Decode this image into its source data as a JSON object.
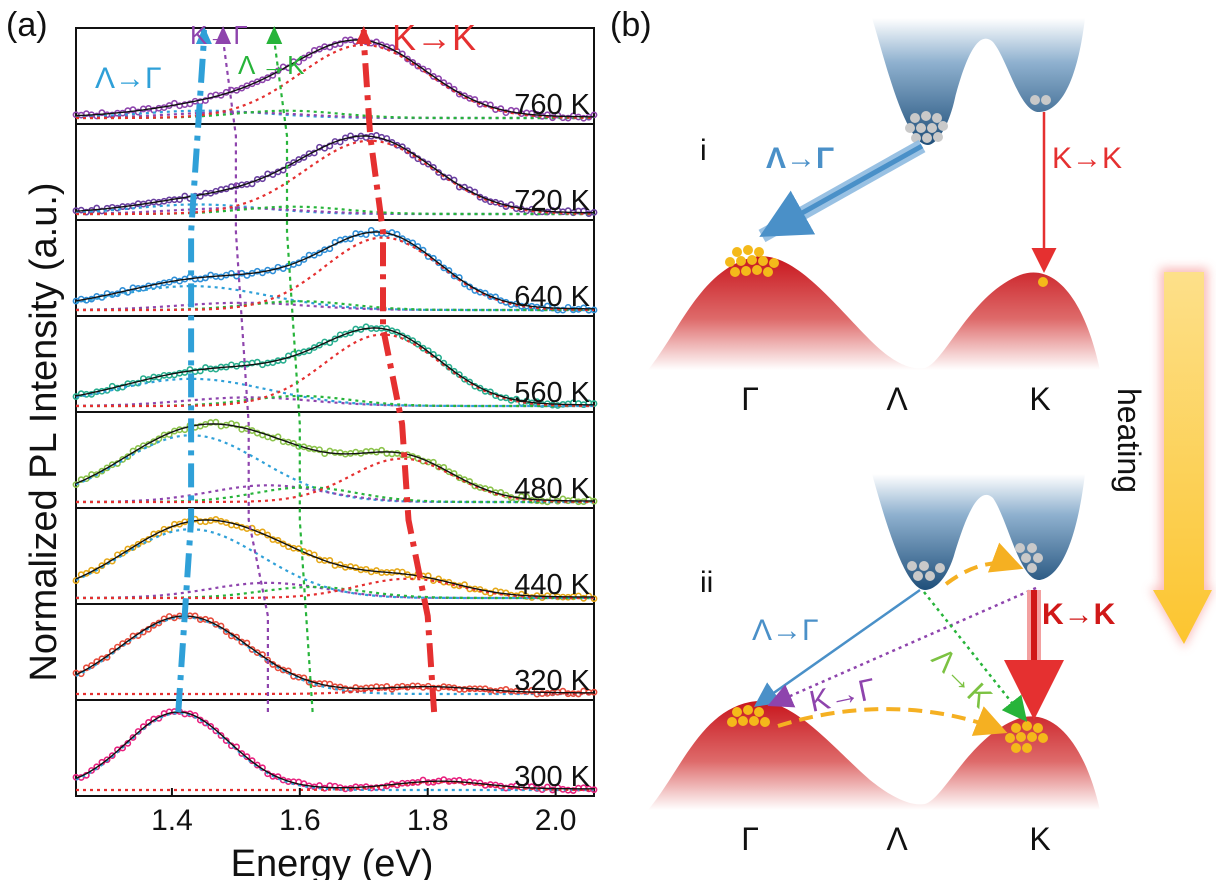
{
  "panel_a_label": "(a)",
  "panel_b_label": "(b)",
  "chart_data": {
    "type": "line",
    "xlabel": "Energy (eV)",
    "ylabel": "Normalized PL Intensity (a.u.)",
    "xlim": [
      1.25,
      2.06
    ],
    "xticks": [
      "1.4",
      "1.6",
      "1.8",
      "2.0"
    ],
    "stacked_panels": true,
    "series": [
      {
        "name": "760 K",
        "color": "#8e44ad",
        "peaks": [
          {
            "E": 1.45,
            "A": 0.1,
            "w": 0.1
          },
          {
            "E": 1.5,
            "A": 0.08,
            "w": 0.1
          },
          {
            "E": 1.58,
            "A": 0.1,
            "w": 0.08
          },
          {
            "E": 1.7,
            "A": 1.0,
            "w": 0.1
          }
        ]
      },
      {
        "name": "720 K",
        "color": "#6a3fa0",
        "peaks": [
          {
            "E": 1.44,
            "A": 0.13,
            "w": 0.1
          },
          {
            "E": 1.5,
            "A": 0.08,
            "w": 0.1
          },
          {
            "E": 1.59,
            "A": 0.1,
            "w": 0.08
          },
          {
            "E": 1.71,
            "A": 1.0,
            "w": 0.1
          }
        ]
      },
      {
        "name": "640 K",
        "color": "#2f8fd8",
        "peaks": [
          {
            "E": 1.43,
            "A": 0.33,
            "w": 0.12
          },
          {
            "E": 1.51,
            "A": 0.1,
            "w": 0.1
          },
          {
            "E": 1.6,
            "A": 0.12,
            "w": 0.08
          },
          {
            "E": 1.73,
            "A": 1.0,
            "w": 0.09
          }
        ]
      },
      {
        "name": "560 K",
        "color": "#27ae8f",
        "peaks": [
          {
            "E": 1.43,
            "A": 0.38,
            "w": 0.12
          },
          {
            "E": 1.52,
            "A": 0.12,
            "w": 0.1
          },
          {
            "E": 1.6,
            "A": 0.14,
            "w": 0.08
          },
          {
            "E": 1.73,
            "A": 1.0,
            "w": 0.09
          }
        ]
      },
      {
        "name": "480 K",
        "color": "#8bc34a",
        "peaks": [
          {
            "E": 1.43,
            "A": 1.0,
            "w": 0.11
          },
          {
            "E": 1.55,
            "A": 0.25,
            "w": 0.09
          },
          {
            "E": 1.61,
            "A": 0.22,
            "w": 0.08
          },
          {
            "E": 1.76,
            "A": 0.65,
            "w": 0.08
          }
        ]
      },
      {
        "name": "440 K",
        "color": "#e6a817",
        "peaks": [
          {
            "E": 1.43,
            "A": 1.0,
            "w": 0.11
          },
          {
            "E": 1.55,
            "A": 0.22,
            "w": 0.09
          },
          {
            "E": 1.62,
            "A": 0.16,
            "w": 0.08
          },
          {
            "E": 1.77,
            "A": 0.28,
            "w": 0.08
          }
        ]
      },
      {
        "name": "320 K",
        "color": "#e74c3c",
        "peaks": [
          {
            "E": 1.42,
            "A": 1.0,
            "w": 0.1
          },
          {
            "E": 1.8,
            "A": 0.08,
            "w": 0.08
          }
        ]
      },
      {
        "name": "300 K",
        "color": "#e8207e",
        "peaks": [
          {
            "E": 1.41,
            "A": 1.0,
            "w": 0.08
          },
          {
            "E": 1.82,
            "A": 0.1,
            "w": 0.07
          }
        ]
      }
    ],
    "trend_lines": [
      {
        "name": "Λ→Γ",
        "color": "#2fa0d8",
        "E": [
          1.41,
          1.42,
          1.43,
          1.43,
          1.43,
          1.43,
          1.44,
          1.45
        ]
      },
      {
        "name": "K→Γ",
        "color": "#8e44ad",
        "E": [
          1.55,
          1.55,
          1.52,
          1.52,
          1.51,
          1.5,
          1.5,
          1.48
        ]
      },
      {
        "name": "Λ→K",
        "color": "#27b43a",
        "E": [
          1.62,
          1.61,
          1.6,
          1.6,
          1.59,
          1.58,
          1.58,
          1.56
        ]
      },
      {
        "name": "K→K",
        "color": "#e53030",
        "E": [
          1.81,
          1.8,
          1.77,
          1.76,
          1.73,
          1.73,
          1.71,
          1.7
        ]
      }
    ]
  },
  "panel_a_labels": {
    "lambda_gamma": "Λ→Γ",
    "k_gamma": "K→Γ",
    "lambda_k": "Λ →K",
    "k_k": "K→K"
  },
  "panel_b": {
    "diagram_i": {
      "roman": "i",
      "lambda_gamma": "Λ→Γ",
      "k_k": "K→K",
      "valleys": [
        "Γ",
        "Λ",
        "K"
      ]
    },
    "diagram_ii": {
      "roman": "ii",
      "lambda_gamma": "Λ→Γ",
      "k_gamma": "K→Γ",
      "lambda_k": "Λ→K",
      "k_k": "K→K",
      "valleys": [
        "Γ",
        "Λ",
        "K"
      ]
    },
    "heating_label": "heating"
  },
  "colors": {
    "conduction_band": "#1f4f7a",
    "valence_band": "#c8161d",
    "electron": "#c9c9c9",
    "hole": "#f4b91a",
    "heating_arrow": "#fcd55a",
    "phonon_arrow": "#f5b022"
  }
}
